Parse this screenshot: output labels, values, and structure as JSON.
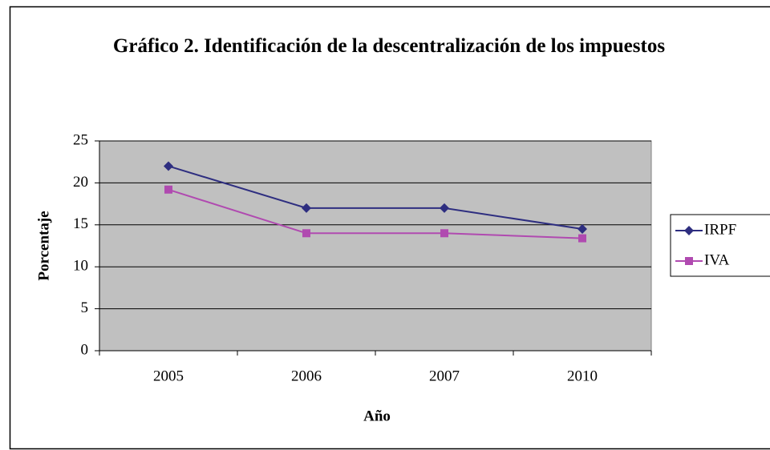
{
  "chart_data": {
    "type": "line",
    "title": "Gráfico 2. Identificación de la descentralización de los impuestos",
    "x_label": "Año",
    "y_label": "Porcentaje",
    "categories": [
      "2005",
      "2006",
      "2007",
      "2010"
    ],
    "series": [
      {
        "name": "IRPF",
        "color": "#2e2e80",
        "marker": "diamond",
        "values": [
          22,
          17,
          17,
          14.5
        ]
      },
      {
        "name": "IVA",
        "color": "#b04ab0",
        "marker": "square",
        "values": [
          19.2,
          14,
          14,
          13.4
        ]
      }
    ],
    "ylim": [
      0,
      25
    ],
    "yticks": [
      0,
      5,
      10,
      15,
      20,
      25
    ],
    "grid": true,
    "legend": "right",
    "plot_background": "#c0c0c0"
  }
}
